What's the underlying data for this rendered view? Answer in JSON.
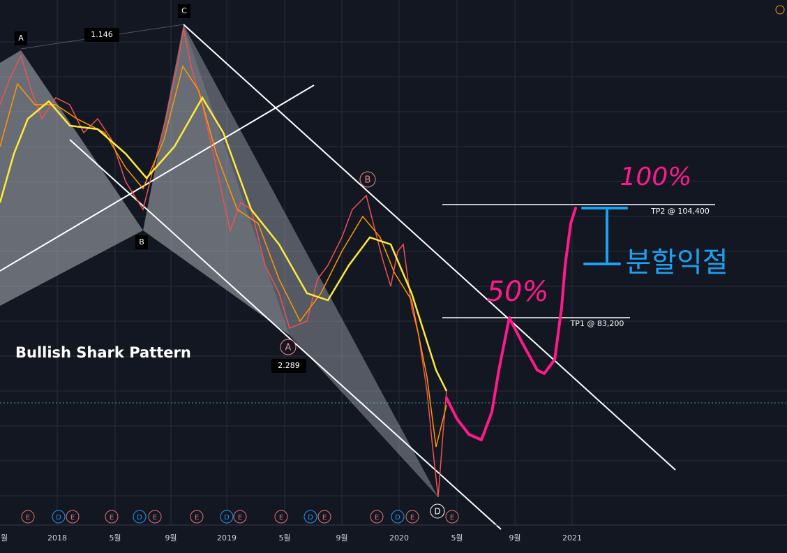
{
  "title": "Bullish Shark Pattern",
  "pattern_points": [
    "A",
    "B",
    "C"
  ],
  "ratios": [
    "1.146",
    "2.289"
  ],
  "pivots": [
    "A",
    "B",
    "D"
  ],
  "targets": [
    "TP1 @ 83,200",
    "TP2 @ 104,400"
  ],
  "handwriting": [
    "100%",
    "50%",
    "분할익절"
  ],
  "time_axis": [
    "월",
    "2018",
    "5월",
    "9월",
    "2019",
    "5월",
    "9월",
    "2020",
    "5월",
    "9월",
    "2021"
  ],
  "events": [
    "E",
    "D",
    "E",
    "E",
    "D",
    "E",
    "E",
    "D",
    "E",
    "E",
    "D",
    "E",
    "E",
    "D",
    "E",
    "E"
  ]
}
